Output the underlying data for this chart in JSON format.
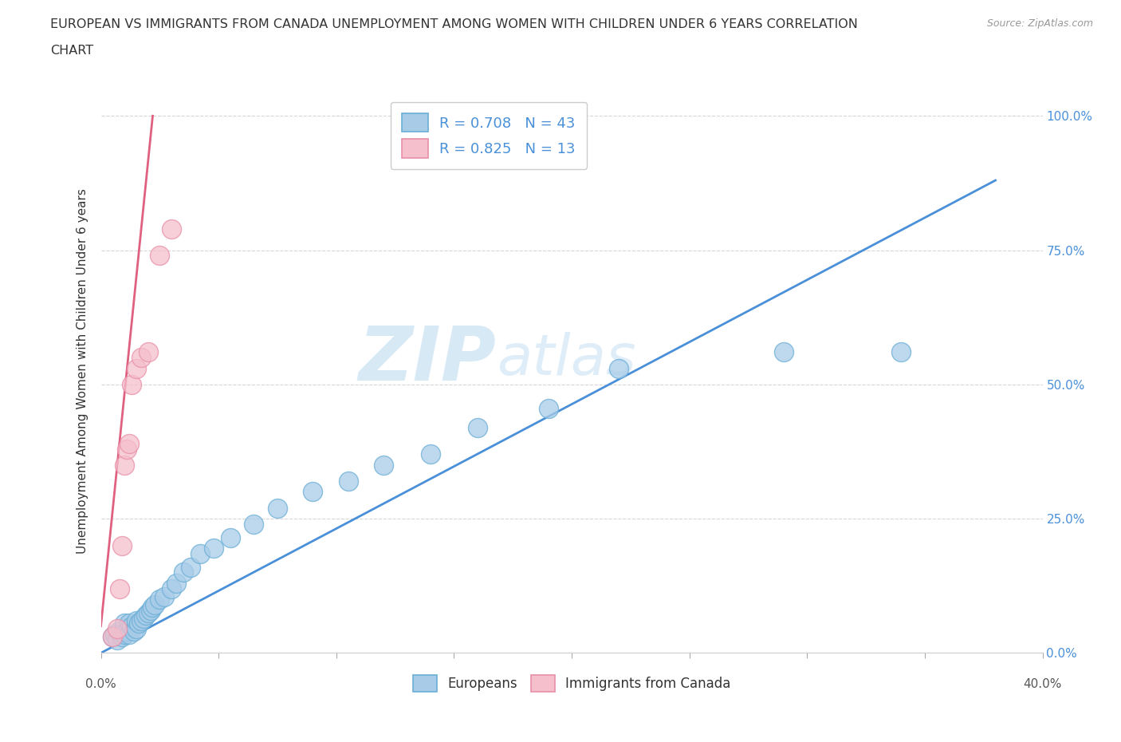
{
  "title_line1": "EUROPEAN VS IMMIGRANTS FROM CANADA UNEMPLOYMENT AMONG WOMEN WITH CHILDREN UNDER 6 YEARS CORRELATION",
  "title_line2": "CHART",
  "source": "Source: ZipAtlas.com",
  "ylabel": "Unemployment Among Women with Children Under 6 years",
  "xlim": [
    0.0,
    0.4
  ],
  "ylim": [
    0.0,
    1.05
  ],
  "yticks": [
    0.0,
    0.25,
    0.5,
    0.75,
    1.0
  ],
  "ytick_labels": [
    "0.0%",
    "25.0%",
    "50.0%",
    "75.0%",
    "100.0%"
  ],
  "xtick_left_label": "0.0%",
  "xtick_right_label": "40.0%",
  "european_color": "#a8cce8",
  "immigrant_color": "#f5bfcc",
  "european_edge_color": "#6aaed6",
  "immigrant_edge_color": "#e88fa8",
  "european_line_color": "#4a90d9",
  "immigrant_line_color": "#e06080",
  "right_ytick_color": "#4a90d9",
  "legend_text_color": "#4a90d9",
  "R_european": 0.708,
  "N_european": 43,
  "R_immigrant": 0.825,
  "N_immigrant": 13,
  "watermark_zip": "ZIP",
  "watermark_atlas": "atlas",
  "european_x": [
    0.005,
    0.006,
    0.007,
    0.008,
    0.009,
    0.01,
    0.01,
    0.01,
    0.011,
    0.012,
    0.012,
    0.013,
    0.014,
    0.015,
    0.015,
    0.016,
    0.017,
    0.018,
    0.019,
    0.02,
    0.021,
    0.022,
    0.023,
    0.025,
    0.027,
    0.03,
    0.032,
    0.035,
    0.038,
    0.042,
    0.048,
    0.055,
    0.065,
    0.075,
    0.09,
    0.105,
    0.12,
    0.14,
    0.16,
    0.19,
    0.22,
    0.29,
    0.34
  ],
  "european_y": [
    0.03,
    0.035,
    0.025,
    0.04,
    0.03,
    0.035,
    0.045,
    0.055,
    0.04,
    0.035,
    0.055,
    0.05,
    0.04,
    0.045,
    0.06,
    0.055,
    0.06,
    0.065,
    0.07,
    0.075,
    0.08,
    0.085,
    0.09,
    0.1,
    0.105,
    0.12,
    0.13,
    0.15,
    0.16,
    0.185,
    0.195,
    0.215,
    0.24,
    0.27,
    0.3,
    0.32,
    0.35,
    0.37,
    0.42,
    0.455,
    0.53,
    0.56,
    0.56
  ],
  "immigrant_x": [
    0.005,
    0.007,
    0.008,
    0.009,
    0.01,
    0.011,
    0.012,
    0.013,
    0.015,
    0.017,
    0.02,
    0.025,
    0.03
  ],
  "immigrant_y": [
    0.03,
    0.045,
    0.12,
    0.2,
    0.35,
    0.38,
    0.39,
    0.5,
    0.53,
    0.55,
    0.56,
    0.74,
    0.79
  ],
  "eu_line_x0": 0.0,
  "eu_line_y0": 0.0,
  "eu_line_x1": 0.38,
  "eu_line_y1": 0.88,
  "im_line_x0": 0.0,
  "im_line_y0": 0.05,
  "im_line_x1": 0.022,
  "im_line_y1": 1.0
}
